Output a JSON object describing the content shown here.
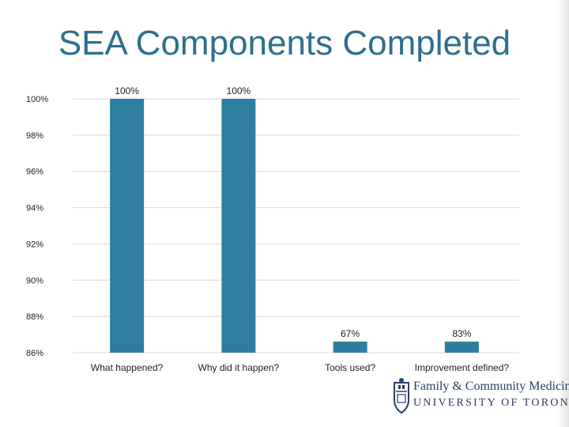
{
  "title": "SEA Components Completed",
  "logo": {
    "line1": "Family & Community Medicine",
    "line2": "UNIVERSITY OF TORONTO"
  },
  "colors": {
    "bar": "#2e7ea2",
    "title": "#2e6f8e",
    "grid": "#d9d9d9",
    "logo": "#2b3e63"
  },
  "chart_data": {
    "type": "bar",
    "title": "SEA Components Completed",
    "categories": [
      "What happened?",
      "Why did it happen?",
      "Tools used?",
      "Improvement defined?"
    ],
    "values": [
      100,
      100,
      67,
      83
    ],
    "data_labels": [
      "100%",
      "100%",
      "67%",
      "83%"
    ],
    "y_tick_labels": [
      "100%",
      "98%",
      "96%",
      "94%",
      "92%",
      "90%",
      "88%",
      "86%"
    ],
    "axis_break": true,
    "grid": true,
    "legend": "none"
  }
}
